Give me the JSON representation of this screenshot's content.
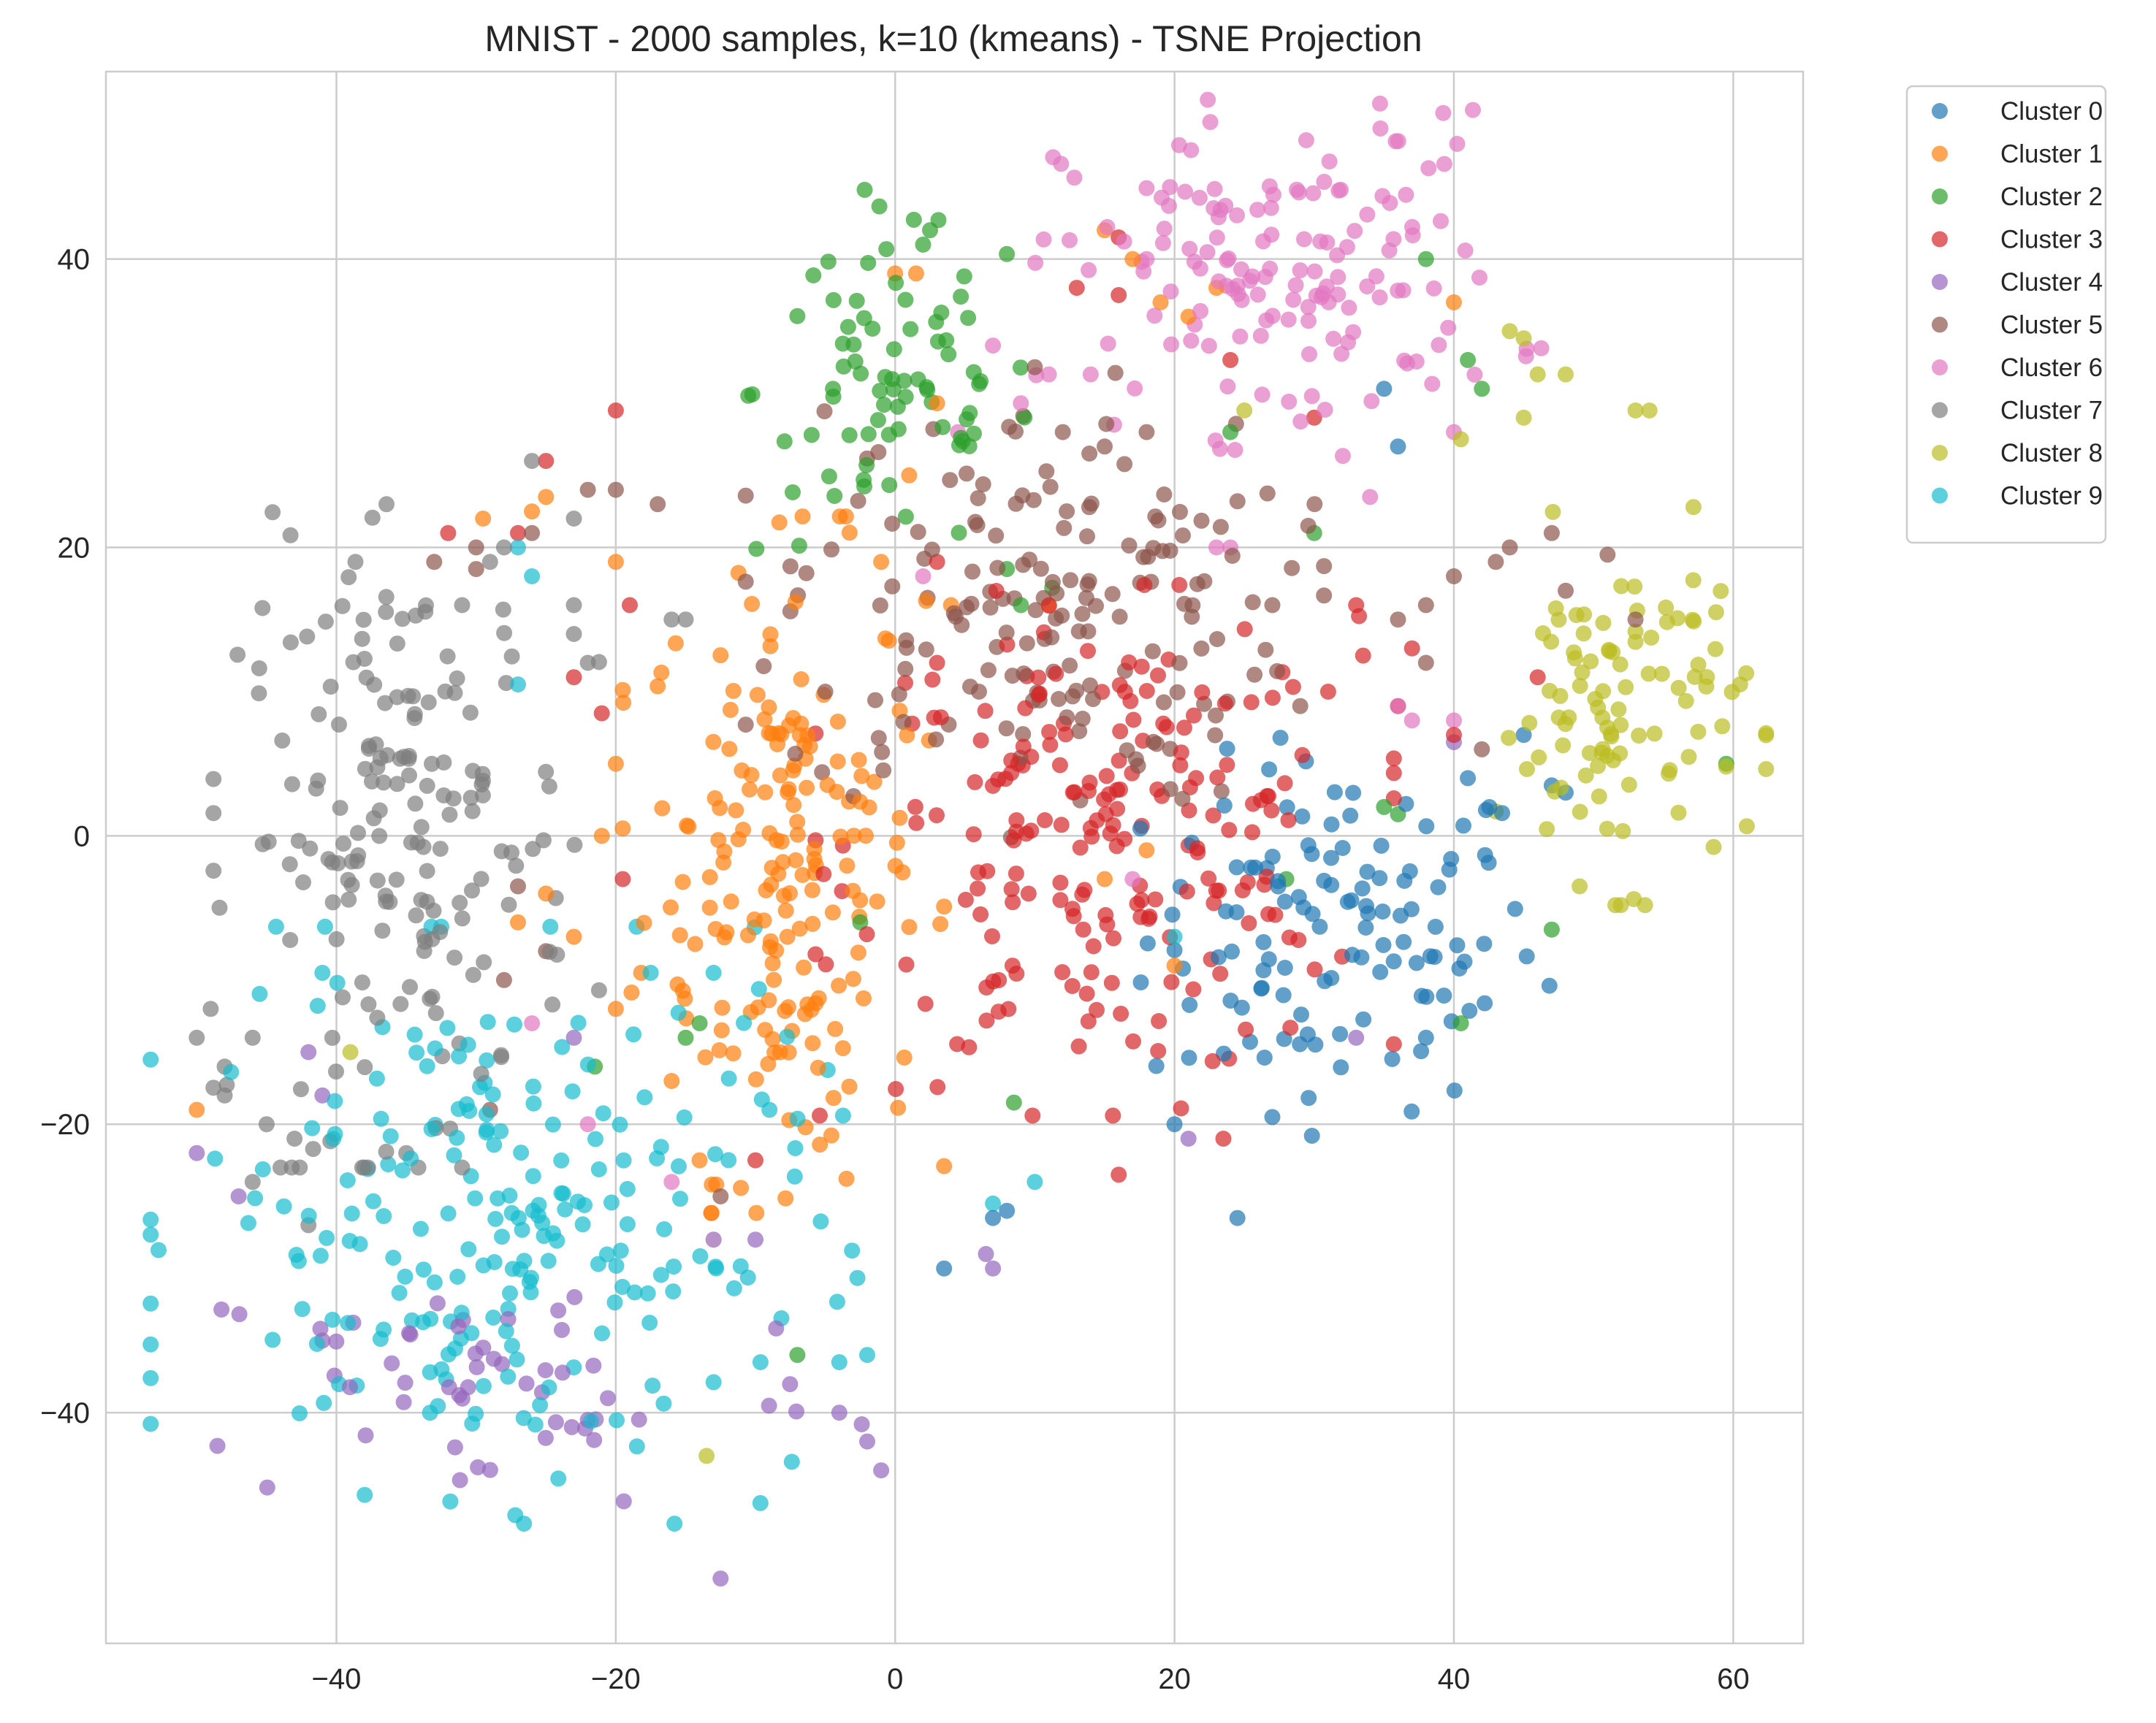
{
  "chart_data": {
    "type": "scatter",
    "title": "MNIST - 2000 samples, k=10 (kmeans) - TSNE Projection",
    "xlabel": "",
    "ylabel": "",
    "xlim": [
      -56.5,
      65
    ],
    "ylim": [
      -56,
      53
    ],
    "xticks": [
      -40,
      -20,
      0,
      20,
      40,
      60
    ],
    "yticks": [
      -40,
      -20,
      0,
      20,
      40
    ],
    "xtick_labels": [
      "−40",
      "−20",
      "0",
      "20",
      "40",
      "60"
    ],
    "ytick_labels": [
      "−40",
      "−20",
      "0",
      "20",
      "40"
    ],
    "grid": true,
    "legend_position": "outside-top-right",
    "series": [
      {
        "name": "Cluster 0",
        "color": "#1f77b4",
        "center": [
          32,
          -7
        ],
        "spread": [
          7,
          6
        ],
        "n": 120,
        "extra": [
          [
            47,
            3.5
          ],
          [
            45,
            7
          ],
          [
            38,
            -14
          ],
          [
            24.5,
            -26.5
          ],
          [
            7,
            -26.5
          ],
          [
            3.5,
            -30
          ],
          [
            8,
            -26
          ],
          [
            41,
            4
          ],
          [
            27,
            -19.5
          ],
          [
            20,
            -20
          ],
          [
            35,
            31
          ],
          [
            36,
            27
          ],
          [
            48,
            3
          ]
        ]
      },
      {
        "name": "Cluster 1",
        "color": "#ff7f0e",
        "center": [
          -8,
          -2
        ],
        "spread": [
          5,
          10.5
        ],
        "n": 190,
        "extra": [
          [
            -26,
            22.5
          ],
          [
            -29.5,
            22
          ],
          [
            -25,
            23.5
          ],
          [
            -20,
            19
          ],
          [
            -50,
            -19
          ],
          [
            -25,
            -4
          ],
          [
            -23,
            -7
          ],
          [
            -27,
            -6
          ],
          [
            -14,
            -22.5
          ],
          [
            -16,
            -17
          ],
          [
            -20,
            -12
          ],
          [
            -21,
            0
          ],
          [
            -20,
            5
          ],
          [
            1.5,
            39
          ],
          [
            0,
            39
          ],
          [
            17,
            40
          ],
          [
            15,
            42
          ],
          [
            19,
            37
          ],
          [
            21,
            36
          ],
          [
            23,
            38
          ],
          [
            40,
            37
          ],
          [
            3,
            30
          ],
          [
            11,
            16
          ],
          [
            4,
            16
          ],
          [
            -1,
            19
          ],
          [
            1,
            25
          ],
          [
            20,
            -9
          ],
          [
            18,
            -1
          ],
          [
            15,
            -3
          ]
        ]
      },
      {
        "name": "Cluster 2",
        "color": "#2ca02c",
        "center": [
          0,
          31
        ],
        "spread": [
          5,
          6
        ],
        "n": 80,
        "extra": [
          [
            2,
            41
          ],
          [
            2.5,
            42
          ],
          [
            8,
            18.5
          ],
          [
            9,
            16
          ],
          [
            -15,
            -14
          ],
          [
            -14,
            -13
          ],
          [
            -21.5,
            -16
          ],
          [
            -2.5,
            -6
          ],
          [
            36,
            1.5
          ],
          [
            35,
            2
          ],
          [
            38,
            40
          ],
          [
            41,
            33
          ],
          [
            42,
            31
          ],
          [
            59.5,
            5
          ],
          [
            47,
            -6.5
          ],
          [
            40.5,
            -13
          ],
          [
            30,
            21
          ],
          [
            28,
            -3
          ],
          [
            8.5,
            -18.5
          ],
          [
            -7,
            -36
          ],
          [
            24,
            28
          ]
        ]
      },
      {
        "name": "Cluster 3",
        "color": "#d62728",
        "center": [
          15,
          -1
        ],
        "spread": [
          9,
          8
        ],
        "n": 210,
        "extra": [
          [
            -27,
            21
          ],
          [
            -32,
            21
          ],
          [
            -25,
            26
          ],
          [
            -20,
            29.5
          ],
          [
            -19,
            16
          ],
          [
            -21,
            8.5
          ],
          [
            -23,
            11
          ],
          [
            -19.5,
            -3
          ],
          [
            -10,
            -22.5
          ],
          [
            16,
            -23.5
          ],
          [
            23.5,
            -21
          ],
          [
            33,
            16
          ],
          [
            33.5,
            12.5
          ],
          [
            36,
            9
          ],
          [
            31,
            10
          ],
          [
            40,
            7
          ],
          [
            37,
            13
          ],
          [
            24,
            33
          ],
          [
            30,
            29
          ],
          [
            16,
            37.5
          ],
          [
            13,
            38
          ],
          [
            16,
            41.5
          ],
          [
            46,
            11
          ],
          [
            3,
            12
          ],
          [
            3,
            19
          ]
        ]
      },
      {
        "name": "Cluster 4",
        "color": "#9467bd",
        "center": [
          -28,
          -38
        ],
        "spread": [
          12,
          4.5
        ],
        "n": 55,
        "extra": [
          [
            -42,
            -15
          ],
          [
            -41,
            -18
          ],
          [
            -50,
            -22
          ],
          [
            -47,
            -25
          ],
          [
            -12.5,
            -51.5
          ],
          [
            -1,
            -44
          ],
          [
            -2,
            -42
          ],
          [
            -4,
            -40
          ],
          [
            6.5,
            -29
          ],
          [
            7,
            -30
          ],
          [
            -10,
            -28
          ],
          [
            -23,
            -14
          ],
          [
            33,
            -14
          ],
          [
            21,
            -21
          ],
          [
            40,
            6.5
          ],
          [
            -41,
            -35
          ]
        ]
      },
      {
        "name": "Cluster 5",
        "color": "#8c564b",
        "center": [
          10,
          16
        ],
        "spread": [
          9,
          7
        ],
        "n": 170,
        "extra": [
          [
            -30,
            20
          ],
          [
            -26,
            21
          ],
          [
            -22,
            24
          ],
          [
            -20,
            24
          ],
          [
            -17,
            23
          ],
          [
            -33,
            19
          ],
          [
            -30,
            18.5
          ],
          [
            -28,
            -10
          ],
          [
            -29,
            -19
          ],
          [
            -27,
            -3.5
          ],
          [
            -25,
            -8
          ],
          [
            -12.5,
            -25
          ],
          [
            36,
            15
          ],
          [
            38,
            16
          ],
          [
            40,
            18
          ],
          [
            44,
            20
          ],
          [
            47,
            21
          ],
          [
            43,
            19
          ],
          [
            51,
            19.5
          ],
          [
            48,
            17
          ],
          [
            53,
            15
          ],
          [
            42,
            6
          ],
          [
            38,
            12
          ],
          [
            29,
            9
          ],
          [
            27,
            16
          ],
          [
            15,
            27
          ],
          [
            18,
            28
          ],
          [
            12,
            28
          ],
          [
            10,
            32.5
          ],
          [
            6,
            10
          ],
          [
            -5,
            10
          ]
        ]
      },
      {
        "name": "Cluster 6",
        "color": "#e377c2",
        "center": [
          28,
          39
        ],
        "spread": [
          8,
          5.5
        ],
        "n": 150,
        "extra": [
          [
            4.5,
            28
          ],
          [
            2,
            18
          ],
          [
            18,
            40
          ],
          [
            11,
            32
          ],
          [
            7,
            34
          ],
          [
            9,
            30
          ],
          [
            14,
            32
          ],
          [
            23,
            20
          ],
          [
            24,
            20
          ],
          [
            36,
            9
          ],
          [
            37,
            8
          ],
          [
            40,
            8
          ],
          [
            34,
            23.5
          ],
          [
            -26,
            -13
          ],
          [
            -22,
            -20
          ],
          [
            -13,
            -28
          ],
          [
            -16,
            -24
          ],
          [
            17,
            -3
          ],
          [
            40,
            28
          ]
        ]
      },
      {
        "name": "Cluster 7",
        "color": "#7f7f7f",
        "center": [
          -35,
          0
        ],
        "spread": [
          6,
          10
        ],
        "n": 180,
        "extra": [
          [
            -48,
            -16
          ],
          [
            -46,
            -14
          ],
          [
            -45,
            -20
          ],
          [
            -50,
            -14
          ],
          [
            -49,
            -12
          ],
          [
            -48,
            -18
          ],
          [
            -44,
            -23
          ],
          [
            -46,
            -24
          ],
          [
            -42,
            -27
          ],
          [
            -43,
            -21
          ],
          [
            -38,
            -23
          ],
          [
            -35,
            -22
          ],
          [
            -31,
            -23
          ],
          [
            -23,
            16
          ],
          [
            -23,
            14
          ],
          [
            -22,
            12
          ],
          [
            -23,
            22
          ],
          [
            -26,
            26
          ],
          [
            -28,
            20
          ],
          [
            -29,
            19
          ],
          [
            -31,
            16
          ],
          [
            -15,
            15
          ],
          [
            -16,
            15
          ]
        ]
      },
      {
        "name": "Cluster 8",
        "color": "#bcbd22",
        "center": [
          52,
          9
        ],
        "spread": [
          4.5,
          6
        ],
        "n": 100,
        "extra": [
          [
            44,
            35
          ],
          [
            45,
            34.5
          ],
          [
            46,
            32
          ],
          [
            48,
            32
          ],
          [
            45,
            29
          ],
          [
            40.5,
            27.5
          ],
          [
            54,
            29.5
          ],
          [
            53,
            29.5
          ],
          [
            25,
            29.5
          ],
          [
            -39,
            -15
          ],
          [
            -13.5,
            -43
          ],
          [
            49,
            -3.5
          ]
        ]
      },
      {
        "name": "Cluster 9",
        "color": "#17becf",
        "center": [
          -28,
          -27
        ],
        "spread": [
          11,
          9
        ],
        "n": 230,
        "extra": [
          [
            -27,
            20
          ],
          [
            -26,
            18
          ],
          [
            -27,
            10.5
          ],
          [
            -17.5,
            -9.5
          ],
          [
            -13,
            -9.5
          ],
          [
            -9,
            -19
          ],
          [
            -4,
            -36.5
          ],
          [
            -2,
            -36
          ],
          [
            7,
            -25.5
          ],
          [
            10,
            -24
          ],
          [
            20,
            -7
          ],
          [
            -41,
            -9.5
          ],
          [
            -13,
            -28
          ]
        ]
      }
    ]
  }
}
